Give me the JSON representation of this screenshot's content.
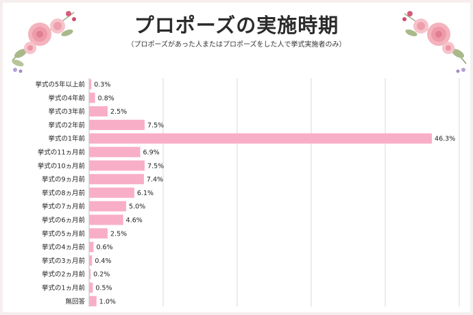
{
  "title": "プロポーズの実施時期",
  "subtitle": "（プロポーズがあった人またはプロポーズをした人で挙式実施者のみ）",
  "colors": {
    "bar": "#f9aec8",
    "grid": "#d9d9d9",
    "background": "#f6eeee"
  },
  "chart_data": {
    "type": "bar",
    "orientation": "horizontal",
    "categories": [
      "挙式の5年以上前",
      "挙式の4年前",
      "挙式の3年前",
      "挙式の2年前",
      "挙式の1年前",
      "挙式の11ヵ月前",
      "挙式の10ヵ月前",
      "挙式の9ヵ月前",
      "挙式の8ヵ月前",
      "挙式の7ヵ月前",
      "挙式の6ヵ月前",
      "挙式の5ヵ月前",
      "挙式の4ヵ月前",
      "挙式の3ヵ月前",
      "挙式の2ヵ月前",
      "挙式の1ヵ月前",
      "無回答"
    ],
    "values": [
      0.3,
      0.8,
      2.5,
      7.5,
      46.3,
      6.9,
      7.5,
      7.4,
      6.1,
      5.0,
      4.6,
      2.5,
      0.6,
      0.4,
      0.2,
      0.5,
      1.0
    ],
    "value_labels": [
      "0.3%",
      "0.8%",
      "2.5%",
      "7.5%",
      "46.3%",
      "6.9%",
      "7.5%",
      "7.4%",
      "6.1%",
      "5.0%",
      "4.6%",
      "2.5%",
      "0.6%",
      "0.4%",
      "0.2%",
      "0.5%",
      "1.0%"
    ],
    "xlim": [
      0,
      50
    ],
    "grid": true,
    "legend": "none"
  }
}
